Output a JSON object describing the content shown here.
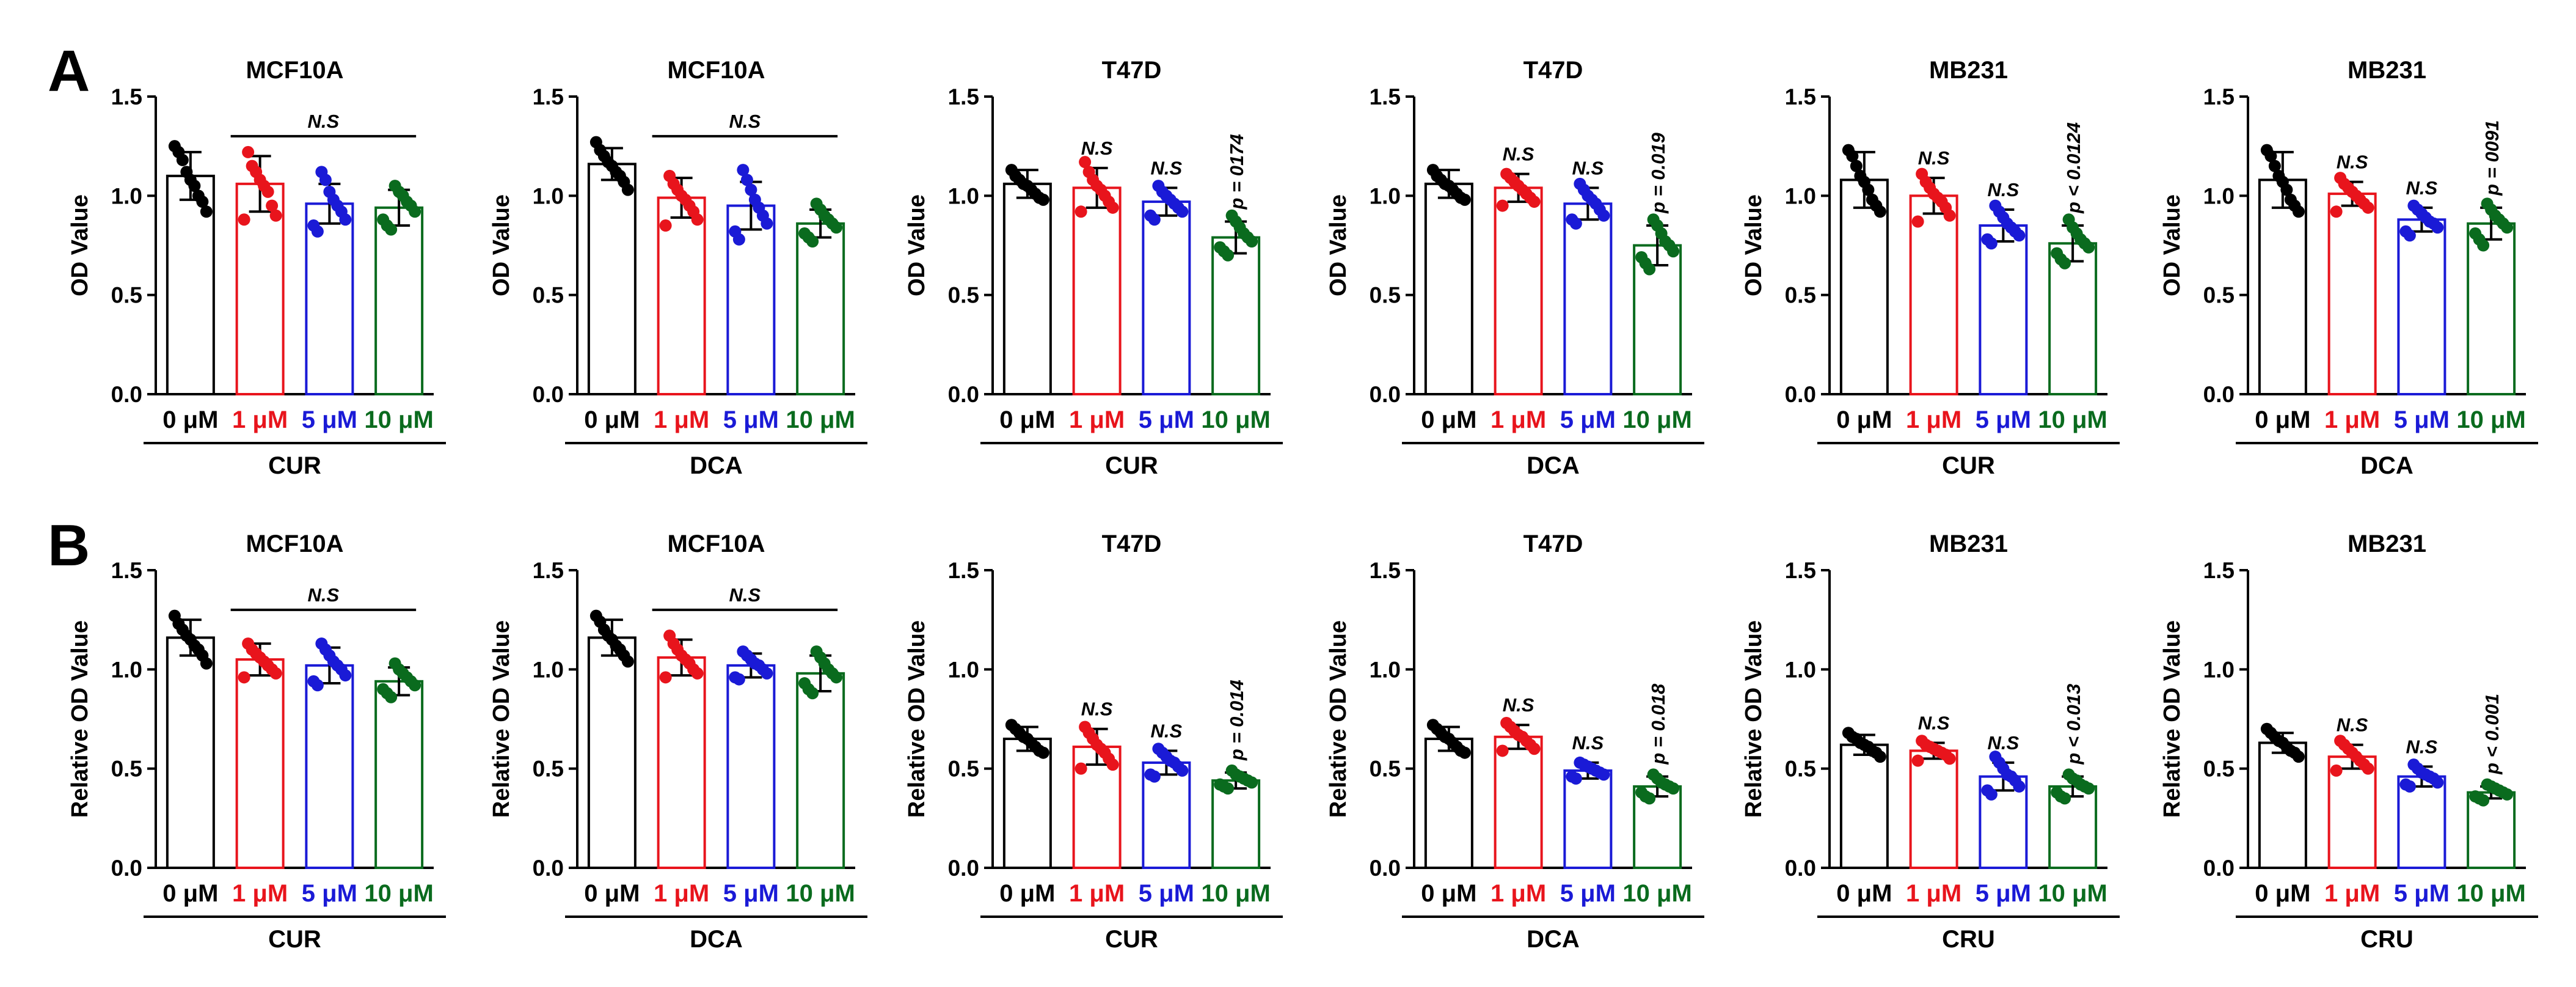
{
  "figure": {
    "panel_labels": [
      "A",
      "B"
    ],
    "condition_labels": [
      "0 μM",
      "1 μM",
      "5 μM",
      "10 μM"
    ],
    "condition_colors": [
      "#000000",
      "#e8141c",
      "#1a1ad6",
      "#0a6b1e"
    ]
  },
  "chart_data": [
    {
      "id": "A1",
      "panel": "A",
      "type": "bar",
      "title": "MCF10A",
      "ylabel": "OD Value",
      "treatment": "CUR",
      "ylim": [
        0,
        1.5
      ],
      "yticks": [
        "0.0",
        "0.5",
        "1.0",
        "1.5"
      ],
      "categories": [
        "0 μM",
        "1 μM",
        "5 μM",
        "10 μM"
      ],
      "values": [
        1.1,
        1.06,
        0.96,
        0.94
      ],
      "errors": [
        0.12,
        0.14,
        0.1,
        0.09
      ],
      "points": [
        [
          1.25,
          1.22,
          1.18,
          1.12,
          1.08,
          1.05,
          1.0,
          0.97,
          0.92
        ],
        [
          1.22,
          1.15,
          1.12,
          1.08,
          1.05,
          1.02,
          0.95,
          0.9,
          0.88
        ],
        [
          1.12,
          1.08,
          1.02,
          0.98,
          0.95,
          0.92,
          0.88,
          0.85,
          0.82
        ],
        [
          1.05,
          1.02,
          1.0,
          0.97,
          0.95,
          0.92,
          0.88,
          0.85,
          0.83
        ]
      ],
      "annotations": [],
      "bracket": {
        "from": 1,
        "to": 3,
        "label": "N.S",
        "y": 1.3
      }
    },
    {
      "id": "A2",
      "panel": "A",
      "type": "bar",
      "title": "MCF10A",
      "ylabel": "OD Value",
      "treatment": "DCA",
      "ylim": [
        0,
        1.5
      ],
      "yticks": [
        "0.0",
        "0.5",
        "1.0",
        "1.5"
      ],
      "categories": [
        "0 μM",
        "1 μM",
        "5 μM",
        "10 μM"
      ],
      "values": [
        1.16,
        0.99,
        0.95,
        0.86
      ],
      "errors": [
        0.08,
        0.1,
        0.12,
        0.07
      ],
      "points": [
        [
          1.27,
          1.23,
          1.2,
          1.17,
          1.15,
          1.12,
          1.1,
          1.07,
          1.03
        ],
        [
          1.1,
          1.06,
          1.03,
          1.0,
          0.98,
          0.95,
          0.92,
          0.88,
          0.85
        ],
        [
          1.13,
          1.08,
          1.03,
          0.98,
          0.94,
          0.9,
          0.86,
          0.82,
          0.78
        ],
        [
          0.96,
          0.93,
          0.9,
          0.88,
          0.86,
          0.84,
          0.81,
          0.79,
          0.77
        ]
      ],
      "annotations": [],
      "bracket": {
        "from": 1,
        "to": 3,
        "label": "N.S",
        "y": 1.3
      }
    },
    {
      "id": "A3",
      "panel": "A",
      "type": "bar",
      "title": "T47D",
      "ylabel": "OD Value",
      "treatment": "CUR",
      "ylim": [
        0,
        1.5
      ],
      "yticks": [
        "0.0",
        "0.5",
        "1.0",
        "1.5"
      ],
      "categories": [
        "0 μM",
        "1 μM",
        "5 μM",
        "10 μM"
      ],
      "values": [
        1.06,
        1.04,
        0.97,
        0.79
      ],
      "errors": [
        0.07,
        0.1,
        0.07,
        0.08
      ],
      "points": [
        [
          1.13,
          1.1,
          1.08,
          1.06,
          1.05,
          1.03,
          1.01,
          0.99,
          0.98
        ],
        [
          1.17,
          1.12,
          1.08,
          1.05,
          1.03,
          1.0,
          0.97,
          0.94,
          0.92
        ],
        [
          1.05,
          1.02,
          1.0,
          0.98,
          0.96,
          0.94,
          0.92,
          0.9,
          0.88
        ],
        [
          0.9,
          0.87,
          0.84,
          0.81,
          0.79,
          0.77,
          0.74,
          0.72,
          0.7
        ]
      ],
      "annotations": [
        "N.S",
        "N.S",
        "p = 0174"
      ],
      "bracket": null
    },
    {
      "id": "A4",
      "panel": "A",
      "type": "bar",
      "title": "T47D",
      "ylabel": "OD Value",
      "treatment": "DCA",
      "ylim": [
        0,
        1.5
      ],
      "yticks": [
        "0.0",
        "0.5",
        "1.0",
        "1.5"
      ],
      "categories": [
        "0 μM",
        "1 μM",
        "5 μM",
        "10 μM"
      ],
      "values": [
        1.06,
        1.04,
        0.96,
        0.75
      ],
      "errors": [
        0.07,
        0.07,
        0.08,
        0.1
      ],
      "points": [
        [
          1.13,
          1.1,
          1.08,
          1.06,
          1.05,
          1.03,
          1.01,
          0.99,
          0.98
        ],
        [
          1.11,
          1.09,
          1.07,
          1.05,
          1.03,
          1.01,
          0.99,
          0.97,
          0.95
        ],
        [
          1.06,
          1.03,
          1.0,
          0.98,
          0.96,
          0.93,
          0.9,
          0.88,
          0.86
        ],
        [
          0.88,
          0.85,
          0.81,
          0.77,
          0.75,
          0.72,
          0.69,
          0.66,
          0.63
        ]
      ],
      "annotations": [
        "N.S",
        "N.S",
        "p = 0.019"
      ],
      "bracket": null
    },
    {
      "id": "A5",
      "panel": "A",
      "type": "bar",
      "title": "MB231",
      "ylabel": "OD Value",
      "treatment": "CUR",
      "ylim": [
        0,
        1.5
      ],
      "yticks": [
        "0.0",
        "0.5",
        "1.0",
        "1.5"
      ],
      "categories": [
        "0 μM",
        "1 μM",
        "5 μM",
        "10 μM"
      ],
      "values": [
        1.08,
        1.0,
        0.85,
        0.76
      ],
      "errors": [
        0.14,
        0.09,
        0.08,
        0.09
      ],
      "points": [
        [
          1.23,
          1.2,
          1.15,
          1.1,
          1.07,
          1.03,
          0.98,
          0.95,
          0.92
        ],
        [
          1.11,
          1.07,
          1.04,
          1.01,
          0.99,
          0.97,
          0.94,
          0.9,
          0.87
        ],
        [
          0.95,
          0.92,
          0.89,
          0.86,
          0.84,
          0.82,
          0.8,
          0.78,
          0.76
        ],
        [
          0.88,
          0.84,
          0.81,
          0.78,
          0.76,
          0.74,
          0.71,
          0.68,
          0.66
        ]
      ],
      "annotations": [
        "N.S",
        "N.S",
        "p < 0.0124"
      ],
      "bracket": null
    },
    {
      "id": "A6",
      "panel": "A",
      "type": "bar",
      "title": "MB231",
      "ylabel": "OD Value",
      "treatment": "DCA",
      "ylim": [
        0,
        1.5
      ],
      "yticks": [
        "0.0",
        "0.5",
        "1.0",
        "1.5"
      ],
      "categories": [
        "0 μM",
        "1 μM",
        "5 μM",
        "10 μM"
      ],
      "values": [
        1.08,
        1.01,
        0.88,
        0.86
      ],
      "errors": [
        0.14,
        0.06,
        0.06,
        0.08
      ],
      "points": [
        [
          1.23,
          1.2,
          1.15,
          1.1,
          1.07,
          1.03,
          0.98,
          0.95,
          0.92
        ],
        [
          1.09,
          1.06,
          1.04,
          1.02,
          1.0,
          0.98,
          0.96,
          0.94,
          0.92
        ],
        [
          0.95,
          0.93,
          0.91,
          0.89,
          0.87,
          0.86,
          0.84,
          0.82,
          0.8
        ],
        [
          0.96,
          0.93,
          0.9,
          0.88,
          0.86,
          0.84,
          0.81,
          0.78,
          0.75
        ]
      ],
      "annotations": [
        "N.S",
        "N.S",
        "p = 0091"
      ],
      "bracket": null
    },
    {
      "id": "B1",
      "panel": "B",
      "type": "bar",
      "title": "MCF10A",
      "ylabel": "Relative OD Value",
      "treatment": "CUR",
      "ylim": [
        0,
        1.5
      ],
      "yticks": [
        "0.0",
        "0.5",
        "1.0",
        "1.5"
      ],
      "categories": [
        "0 μM",
        "1 μM",
        "5 μM",
        "10 μM"
      ],
      "values": [
        1.16,
        1.05,
        1.02,
        0.94
      ],
      "errors": [
        0.09,
        0.08,
        0.09,
        0.07
      ],
      "points": [
        [
          1.27,
          1.23,
          1.2,
          1.17,
          1.15,
          1.12,
          1.1,
          1.07,
          1.03
        ],
        [
          1.13,
          1.1,
          1.08,
          1.06,
          1.04,
          1.02,
          1.0,
          0.98,
          0.96
        ],
        [
          1.13,
          1.1,
          1.07,
          1.04,
          1.02,
          1.0,
          0.97,
          0.94,
          0.92
        ],
        [
          1.03,
          1.0,
          0.98,
          0.96,
          0.94,
          0.92,
          0.9,
          0.88,
          0.86
        ]
      ],
      "annotations": [],
      "bracket": {
        "from": 1,
        "to": 3,
        "label": "N.S",
        "y": 1.3
      }
    },
    {
      "id": "B2",
      "panel": "B",
      "type": "bar",
      "title": "MCF10A",
      "ylabel": "Relative OD Value",
      "treatment": "DCA",
      "ylim": [
        0,
        1.5
      ],
      "yticks": [
        "0.0",
        "0.5",
        "1.0",
        "1.5"
      ],
      "categories": [
        "0 μM",
        "1 μM",
        "5 μM",
        "10 μM"
      ],
      "values": [
        1.16,
        1.06,
        1.02,
        0.98
      ],
      "errors": [
        0.09,
        0.09,
        0.06,
        0.09
      ],
      "points": [
        [
          1.27,
          1.24,
          1.2,
          1.17,
          1.15,
          1.12,
          1.1,
          1.07,
          1.04
        ],
        [
          1.17,
          1.13,
          1.1,
          1.07,
          1.05,
          1.03,
          1.0,
          0.98,
          0.96
        ],
        [
          1.09,
          1.07,
          1.05,
          1.03,
          1.02,
          1.0,
          0.98,
          0.96,
          0.95
        ],
        [
          1.09,
          1.06,
          1.03,
          1.0,
          0.98,
          0.96,
          0.93,
          0.9,
          0.88
        ]
      ],
      "annotations": [],
      "bracket": {
        "from": 1,
        "to": 3,
        "label": "N.S",
        "y": 1.3
      }
    },
    {
      "id": "B3",
      "panel": "B",
      "type": "bar",
      "title": "T47D",
      "ylabel": "Relative OD Value",
      "treatment": "CUR",
      "ylim": [
        0,
        1.5
      ],
      "yticks": [
        "0.0",
        "0.5",
        "1.0",
        "1.5"
      ],
      "categories": [
        "0 μM",
        "1 μM",
        "5 μM",
        "10 μM"
      ],
      "values": [
        0.65,
        0.61,
        0.53,
        0.44
      ],
      "errors": [
        0.06,
        0.09,
        0.06,
        0.04
      ],
      "points": [
        [
          0.72,
          0.7,
          0.68,
          0.66,
          0.65,
          0.63,
          0.61,
          0.59,
          0.58
        ],
        [
          0.71,
          0.68,
          0.65,
          0.62,
          0.6,
          0.58,
          0.55,
          0.52,
          0.5
        ],
        [
          0.6,
          0.58,
          0.56,
          0.54,
          0.53,
          0.51,
          0.49,
          0.47,
          0.46
        ],
        [
          0.49,
          0.47,
          0.46,
          0.45,
          0.44,
          0.43,
          0.42,
          0.41,
          0.4
        ]
      ],
      "annotations": [
        "N.S",
        "N.S",
        "p = 0.014"
      ],
      "bracket": null
    },
    {
      "id": "B4",
      "panel": "B",
      "type": "bar",
      "title": "T47D",
      "ylabel": "Relative OD Value",
      "treatment": "DCA",
      "ylim": [
        0,
        1.5
      ],
      "yticks": [
        "0.0",
        "0.5",
        "1.0",
        "1.5"
      ],
      "categories": [
        "0 μM",
        "1 μM",
        "5 μM",
        "10 μM"
      ],
      "values": [
        0.65,
        0.66,
        0.49,
        0.41
      ],
      "errors": [
        0.06,
        0.06,
        0.04,
        0.05
      ],
      "points": [
        [
          0.72,
          0.7,
          0.68,
          0.66,
          0.65,
          0.63,
          0.61,
          0.59,
          0.58
        ],
        [
          0.73,
          0.71,
          0.69,
          0.67,
          0.66,
          0.64,
          0.62,
          0.6,
          0.59
        ],
        [
          0.53,
          0.52,
          0.51,
          0.5,
          0.49,
          0.48,
          0.47,
          0.46,
          0.45
        ],
        [
          0.47,
          0.45,
          0.43,
          0.42,
          0.41,
          0.4,
          0.38,
          0.36,
          0.35
        ]
      ],
      "annotations": [
        "N.S",
        "N.S",
        "p = 0.018"
      ],
      "bracket": null
    },
    {
      "id": "B5",
      "panel": "B",
      "type": "bar",
      "title": "MB231",
      "ylabel": "Relative OD Value",
      "treatment": "CRU",
      "ylim": [
        0,
        1.5
      ],
      "yticks": [
        "0.0",
        "0.5",
        "1.0",
        "1.5"
      ],
      "categories": [
        "0 μM",
        "1 μM",
        "5 μM",
        "10 μM"
      ],
      "values": [
        0.62,
        0.59,
        0.46,
        0.41
      ],
      "errors": [
        0.05,
        0.04,
        0.07,
        0.05
      ],
      "points": [
        [
          0.68,
          0.66,
          0.65,
          0.63,
          0.62,
          0.61,
          0.59,
          0.58,
          0.56
        ],
        [
          0.64,
          0.62,
          0.61,
          0.6,
          0.59,
          0.58,
          0.57,
          0.55,
          0.54
        ],
        [
          0.56,
          0.53,
          0.5,
          0.47,
          0.46,
          0.44,
          0.41,
          0.39,
          0.37
        ],
        [
          0.47,
          0.45,
          0.44,
          0.42,
          0.41,
          0.4,
          0.38,
          0.36,
          0.35
        ]
      ],
      "annotations": [
        "N.S",
        "N.S",
        "p < 0.013"
      ],
      "bracket": null
    },
    {
      "id": "B6",
      "panel": "B",
      "type": "bar",
      "title": "MB231",
      "ylabel": "Relative OD Value",
      "treatment": "CRU",
      "ylim": [
        0,
        1.5
      ],
      "yticks": [
        "0.0",
        "0.5",
        "1.0",
        "1.5"
      ],
      "categories": [
        "0 μM",
        "1 μM",
        "5 μM",
        "10 μM"
      ],
      "values": [
        0.63,
        0.56,
        0.46,
        0.38
      ],
      "errors": [
        0.05,
        0.06,
        0.05,
        0.03
      ],
      "points": [
        [
          0.7,
          0.68,
          0.66,
          0.64,
          0.63,
          0.61,
          0.59,
          0.58,
          0.56
        ],
        [
          0.64,
          0.62,
          0.6,
          0.58,
          0.56,
          0.54,
          0.52,
          0.5,
          0.49
        ],
        [
          0.52,
          0.5,
          0.48,
          0.47,
          0.46,
          0.45,
          0.43,
          0.42,
          0.41
        ],
        [
          0.42,
          0.41,
          0.4,
          0.39,
          0.38,
          0.37,
          0.36,
          0.35,
          0.34
        ]
      ],
      "annotations": [
        "N.S",
        "N.S",
        "p < 0.001"
      ],
      "bracket": null
    }
  ]
}
